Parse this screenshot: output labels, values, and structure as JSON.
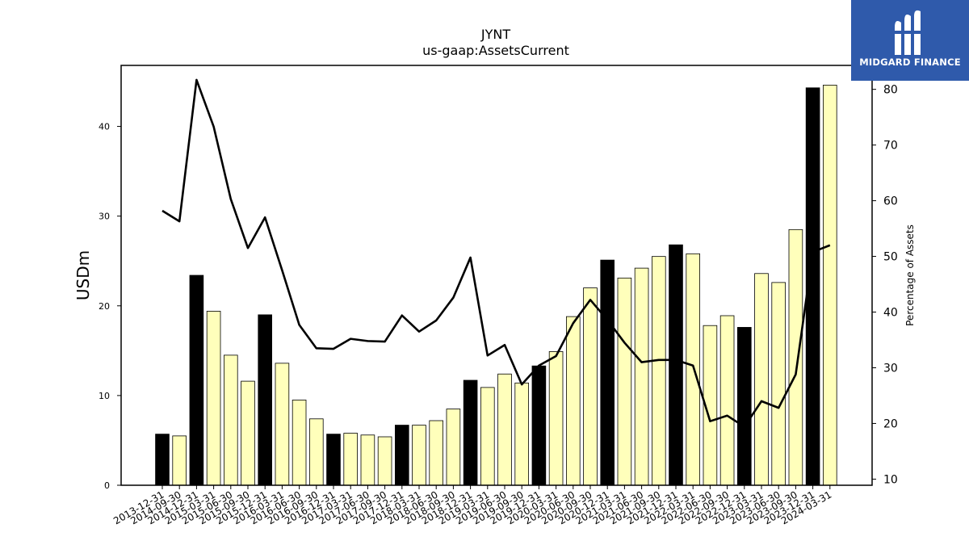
{
  "chart_data": {
    "type": "bar",
    "title": "JYNT",
    "subtitle": "us-gaap:AssetsCurrent",
    "ylabel": "USDm",
    "y2label": "Percentage of Assets",
    "ylim": [
      0,
      46.8
    ],
    "y2lim": [
      8.9,
      84.3
    ],
    "yticks": [
      0,
      10,
      20,
      30,
      40
    ],
    "y2ticks": [
      10,
      20,
      30,
      40,
      50,
      60,
      70,
      80
    ],
    "categories": [
      "2013-12-31",
      "2014-09-30",
      "2014-12-31",
      "2015-03-31",
      "2015-06-30",
      "2015-09-30",
      "2015-12-31",
      "2016-03-31",
      "2016-06-30",
      "2016-09-30",
      "2016-12-31",
      "2017-03-31",
      "2017-06-30",
      "2017-09-30",
      "2017-12-31",
      "2018-03-31",
      "2018-06-30",
      "2018-09-30",
      "2018-12-31",
      "2019-03-31",
      "2019-06-30",
      "2019-09-30",
      "2019-12-31",
      "2020-03-31",
      "2020-06-30",
      "2020-09-30",
      "2020-12-31",
      "2021-03-31",
      "2021-06-30",
      "2021-09-30",
      "2021-12-31",
      "2022-03-31",
      "2022-06-30",
      "2022-09-30",
      "2022-12-31",
      "2023-03-31",
      "2023-06-30",
      "2023-09-30",
      "2023-12-31",
      "2024-03-31"
    ],
    "series": [
      {
        "type": "bar",
        "values": [
          5.7,
          5.5,
          23.4,
          19.4,
          14.5,
          11.6,
          19.0,
          13.6,
          9.5,
          7.4,
          5.7,
          5.8,
          5.6,
          5.4,
          6.7,
          6.7,
          7.2,
          8.5,
          11.7,
          10.9,
          12.4,
          11.4,
          13.3,
          14.9,
          18.8,
          22.0,
          25.1,
          23.1,
          24.2,
          25.5,
          26.8,
          25.8,
          17.8,
          18.9,
          17.6,
          23.6,
          22.6,
          28.5,
          44.3,
          44.6
        ],
        "highlight": [
          true,
          false,
          true,
          false,
          false,
          false,
          true,
          false,
          false,
          false,
          true,
          false,
          false,
          false,
          true,
          false,
          false,
          false,
          true,
          false,
          false,
          false,
          true,
          false,
          false,
          false,
          true,
          false,
          false,
          false,
          true,
          false,
          false,
          false,
          true,
          false,
          false,
          false,
          true,
          false
        ]
      },
      {
        "type": "line",
        "axis": "right",
        "values": [
          58.2,
          56.3,
          81.7,
          73.3,
          60.3,
          51.5,
          57.0,
          47.5,
          37.7,
          33.5,
          33.4,
          35.2,
          34.8,
          34.7,
          39.4,
          36.5,
          38.5,
          42.6,
          49.8,
          32.2,
          34.1,
          27.0,
          30.4,
          32.1,
          38.0,
          42.2,
          38.6,
          34.5,
          31.0,
          31.4,
          31.4,
          30.4,
          20.4,
          21.4,
          19.4,
          24.0,
          22.8,
          28.8,
          50.8,
          52.0
        ]
      }
    ],
    "colors": {
      "highlight": "#000000",
      "bar": "#ffffbb",
      "line": "#000000"
    }
  },
  "logo": {
    "text": "MIDGARD FINANCE",
    "icon": "midgard-finance-logo-icon"
  }
}
